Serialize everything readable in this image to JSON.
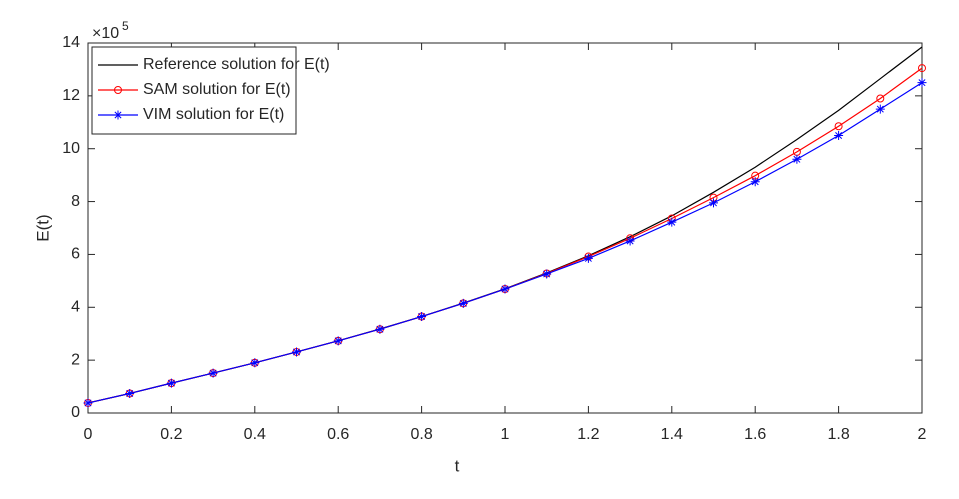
{
  "chart_data": {
    "type": "line",
    "x_label": "t",
    "y_label": "E(t)",
    "y_multiplier": "×10",
    "y_multiplier_exponent": "5",
    "x": [
      0,
      0.1,
      0.2,
      0.3,
      0.4,
      0.5,
      0.6,
      0.7,
      0.8,
      0.9,
      1,
      1.1,
      1.2,
      1.3,
      1.4,
      1.5,
      1.6,
      1.7,
      1.8,
      1.9,
      2
    ],
    "series": [
      {
        "name": "Reference solution for E(t)",
        "color": "#000000",
        "marker": "none",
        "values": [
          0.38,
          0.74,
          1.13,
          1.51,
          1.9,
          2.31,
          2.73,
          3.18,
          3.65,
          4.16,
          4.7,
          5.3,
          5.95,
          6.67,
          7.46,
          8.35,
          9.3,
          10.35,
          11.45,
          12.65,
          13.85
        ]
      },
      {
        "name": "SAM solution for E(t)",
        "color": "#ff0000",
        "marker": "circle",
        "values": [
          0.38,
          0.74,
          1.13,
          1.51,
          1.9,
          2.31,
          2.73,
          3.17,
          3.65,
          4.15,
          4.69,
          5.28,
          5.92,
          6.61,
          7.36,
          8.15,
          8.98,
          9.88,
          10.85,
          11.9,
          13.05
        ]
      },
      {
        "name": "VIM solution for E(t)",
        "color": "#0000ff",
        "marker": "asterisk",
        "values": [
          0.38,
          0.74,
          1.13,
          1.51,
          1.9,
          2.31,
          2.73,
          3.17,
          3.65,
          4.15,
          4.69,
          5.26,
          5.85,
          6.51,
          7.22,
          7.95,
          8.75,
          9.6,
          10.5,
          11.5,
          12.5
        ]
      }
    ],
    "xlim": [
      0,
      2
    ],
    "xticks": [
      0,
      0.2,
      0.4,
      0.6,
      0.8,
      1,
      1.2,
      1.4,
      1.6,
      1.8,
      2
    ],
    "ylim": [
      0,
      14
    ],
    "yticks": [
      0,
      2,
      4,
      6,
      8,
      10,
      12,
      14
    ],
    "grid": false,
    "legend_position": "upper-left"
  }
}
